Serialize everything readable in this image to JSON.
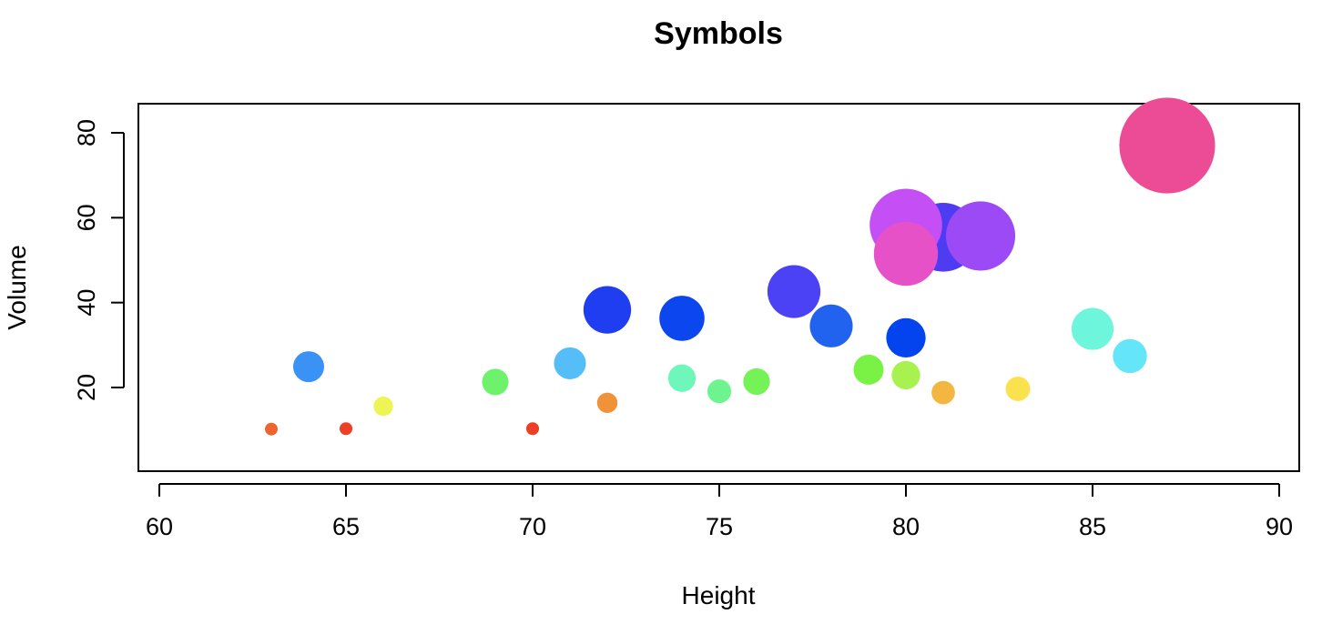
{
  "chart_data": {
    "type": "scatter",
    "title": "Symbols",
    "xlabel": "Height",
    "ylabel": "Volume",
    "xlim": [
      60,
      90
    ],
    "ylim": [
      0,
      87
    ],
    "xticks": [
      60,
      65,
      70,
      75,
      80,
      85,
      90
    ],
    "yticks": [
      20,
      40,
      60,
      80
    ],
    "grid": false,
    "legend": "none",
    "size_encoding": "bubble radius proportional to Volume",
    "points": [
      {
        "x": 63,
        "y": 10.2,
        "color": "#EE632E"
      },
      {
        "x": 64,
        "y": 24.9,
        "color": "#3A92F5"
      },
      {
        "x": 65,
        "y": 10.3,
        "color": "#EC4026"
      },
      {
        "x": 66,
        "y": 15.6,
        "color": "#EEF454"
      },
      {
        "x": 69,
        "y": 21.3,
        "color": "#6EF26B"
      },
      {
        "x": 70,
        "y": 10.3,
        "color": "#EC4026"
      },
      {
        "x": 71,
        "y": 25.7,
        "color": "#55BEF9"
      },
      {
        "x": 72,
        "y": 16.4,
        "color": "#F09338"
      },
      {
        "x": 72,
        "y": 38.3,
        "color": "#1F3EF2"
      },
      {
        "x": 74,
        "y": 22.2,
        "color": "#6FF6BB"
      },
      {
        "x": 74,
        "y": 36.3,
        "color": "#0B46EE"
      },
      {
        "x": 75,
        "y": 19.1,
        "color": "#6EF48E"
      },
      {
        "x": 76,
        "y": 21.4,
        "color": "#74F258"
      },
      {
        "x": 77,
        "y": 42.6,
        "color": "#4B42F5"
      },
      {
        "x": 78,
        "y": 34.5,
        "color": "#2163EE"
      },
      {
        "x": 79,
        "y": 24.2,
        "color": "#79F145"
      },
      {
        "x": 80,
        "y": 22.9,
        "color": "#A8F250"
      },
      {
        "x": 80,
        "y": 31.7,
        "color": "#0344EF"
      },
      {
        "x": 81,
        "y": 18.8,
        "color": "#F3B640"
      },
      {
        "x": 81,
        "y": 55.4,
        "color": "#4E3CF2"
      },
      {
        "x": 80,
        "y": 58.3,
        "color": "#C44FF5"
      },
      {
        "x": 82,
        "y": 55.7,
        "color": "#9C4AF6"
      },
      {
        "x": 80,
        "y": 51.5,
        "color": "#E651C8"
      },
      {
        "x": 83,
        "y": 19.7,
        "color": "#FAE24F"
      },
      {
        "x": 85,
        "y": 33.8,
        "color": "#6EF6DC"
      },
      {
        "x": 86,
        "y": 27.4,
        "color": "#65E6F8"
      },
      {
        "x": 87,
        "y": 77.0,
        "color": "#EC4B95"
      }
    ]
  }
}
